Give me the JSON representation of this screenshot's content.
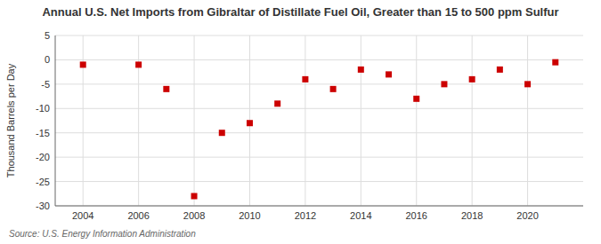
{
  "chart_data": {
    "type": "scatter",
    "title": "Annual U.S. Net Imports from Gibraltar of Distillate Fuel Oil, Greater than 15 to 500 ppm Sulfur",
    "y_label": "Thousand Barrels per Day",
    "annotations": [
      "Source: U.S. Energy Information Administration"
    ],
    "x": [
      2004,
      2006,
      2007,
      2008,
      2009,
      2010,
      2011,
      2012,
      2013,
      2014,
      2015,
      2016,
      2017,
      2018,
      2019,
      2020,
      2021
    ],
    "values": [
      -1.0,
      -1.0,
      -6.0,
      -28.0,
      -15.0,
      -13.0,
      -9.0,
      -4.0,
      -6.0,
      -2.0,
      -3.0,
      -8.0,
      -5.0,
      -4.0,
      -2.0,
      -5.0,
      -0.5
    ],
    "color": "#cc0000",
    "marker": "square",
    "xlim": [
      2003,
      2022
    ],
    "ylim": [
      -30,
      5
    ],
    "xticks": [
      2004,
      2006,
      2008,
      2010,
      2012,
      2014,
      2016,
      2018,
      2020
    ],
    "yticks": [
      5,
      0,
      -5,
      -10,
      -15,
      -20,
      -25,
      -30
    ],
    "grid": true
  }
}
